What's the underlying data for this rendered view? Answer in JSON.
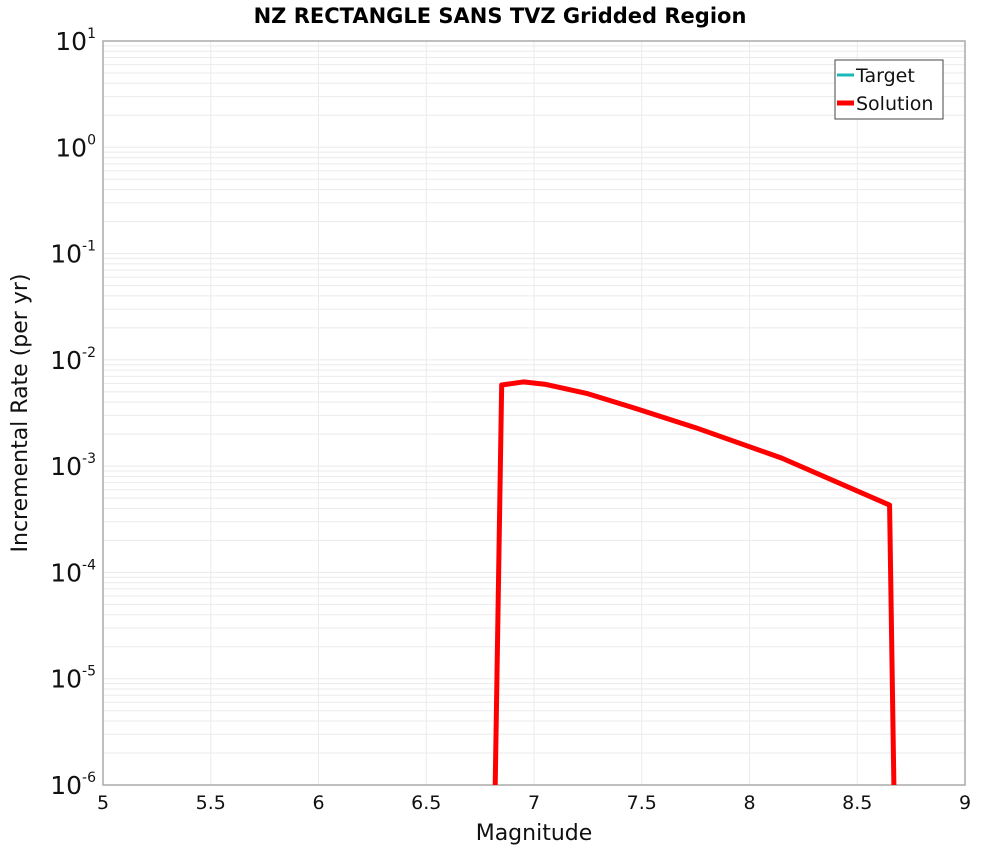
{
  "chart_data": {
    "type": "line",
    "title": "NZ RECTANGLE SANS TVZ Gridded Region",
    "xlabel": "Magnitude",
    "ylabel": "Incremental Rate (per yr)",
    "xlim": [
      5,
      9
    ],
    "ylim": [
      1e-06,
      10
    ],
    "yscale": "log",
    "x_ticks": [
      "5",
      "5.5",
      "6",
      "6.5",
      "7",
      "7.5",
      "8",
      "8.5",
      "9"
    ],
    "y_ticks": [
      {
        "base": "10",
        "exp": "1"
      },
      {
        "base": "10",
        "exp": "0"
      },
      {
        "base": "10",
        "exp": "-1"
      },
      {
        "base": "10",
        "exp": "-2"
      },
      {
        "base": "10",
        "exp": "-3"
      },
      {
        "base": "10",
        "exp": "-4"
      },
      {
        "base": "10",
        "exp": "-5"
      },
      {
        "base": "10",
        "exp": "-6"
      }
    ],
    "grid": true,
    "legend_position": "upper right",
    "series": [
      {
        "name": "Target",
        "color": "#1ab8b8",
        "x": [],
        "y": []
      },
      {
        "name": "Solution",
        "color": "#ff0000",
        "x": [
          6.82,
          6.85,
          6.95,
          7.05,
          7.25,
          7.45,
          7.75,
          8.15,
          8.65,
          8.67
        ],
        "y": [
          1e-06,
          0.0058,
          0.0062,
          0.0059,
          0.0048,
          0.0036,
          0.0023,
          0.00119,
          0.00043,
          1e-06
        ]
      }
    ]
  }
}
